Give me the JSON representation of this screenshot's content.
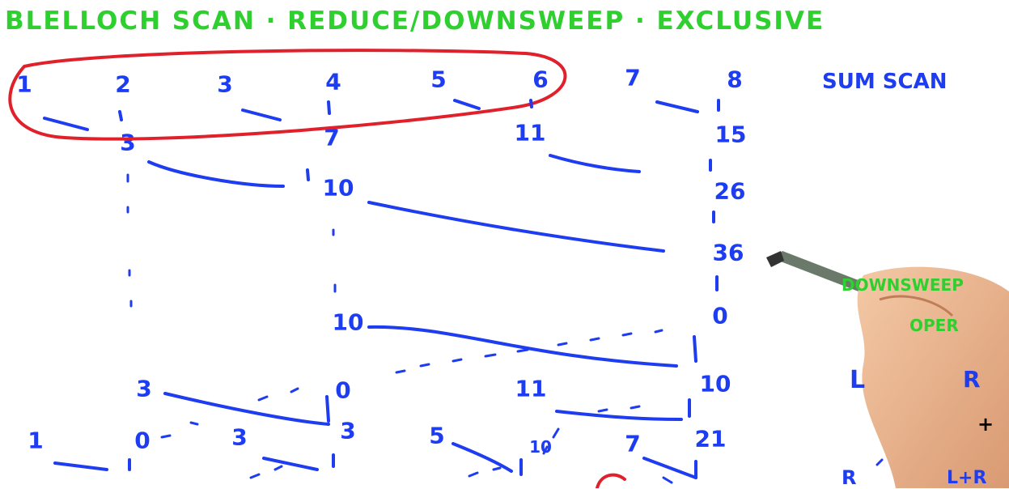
{
  "title": "BLELLOCH SCAN · REDUCE/DOWNSWEEP · EXCLUSIVE",
  "sum_scan_label": "SUM SCAN",
  "downsweep_label": "DOWNSWEEP",
  "oper_label": "OPER",
  "op_legend": {
    "L": "L",
    "R": "R",
    "plus": "+",
    "bottom_R": "R",
    "bottom_LR": "L+R"
  },
  "colors": {
    "ink_green": "#2fcf2f",
    "ink_blue": "#1e3cf0",
    "circle_red": "#e0202a"
  },
  "rows": {
    "inputs": [
      "1",
      "2",
      "3",
      "4",
      "5",
      "6",
      "7",
      "8"
    ],
    "reduce1": [
      "3",
      "7",
      "11",
      "15"
    ],
    "reduce2": [
      "10",
      "26"
    ],
    "reduce3": [
      "36"
    ],
    "identity": [
      "10",
      "0"
    ],
    "down1": [
      "3",
      "0",
      "11",
      "10"
    ],
    "down2": [
      "1",
      "0",
      "3",
      "3",
      "5",
      "10",
      "7",
      "21"
    ]
  }
}
